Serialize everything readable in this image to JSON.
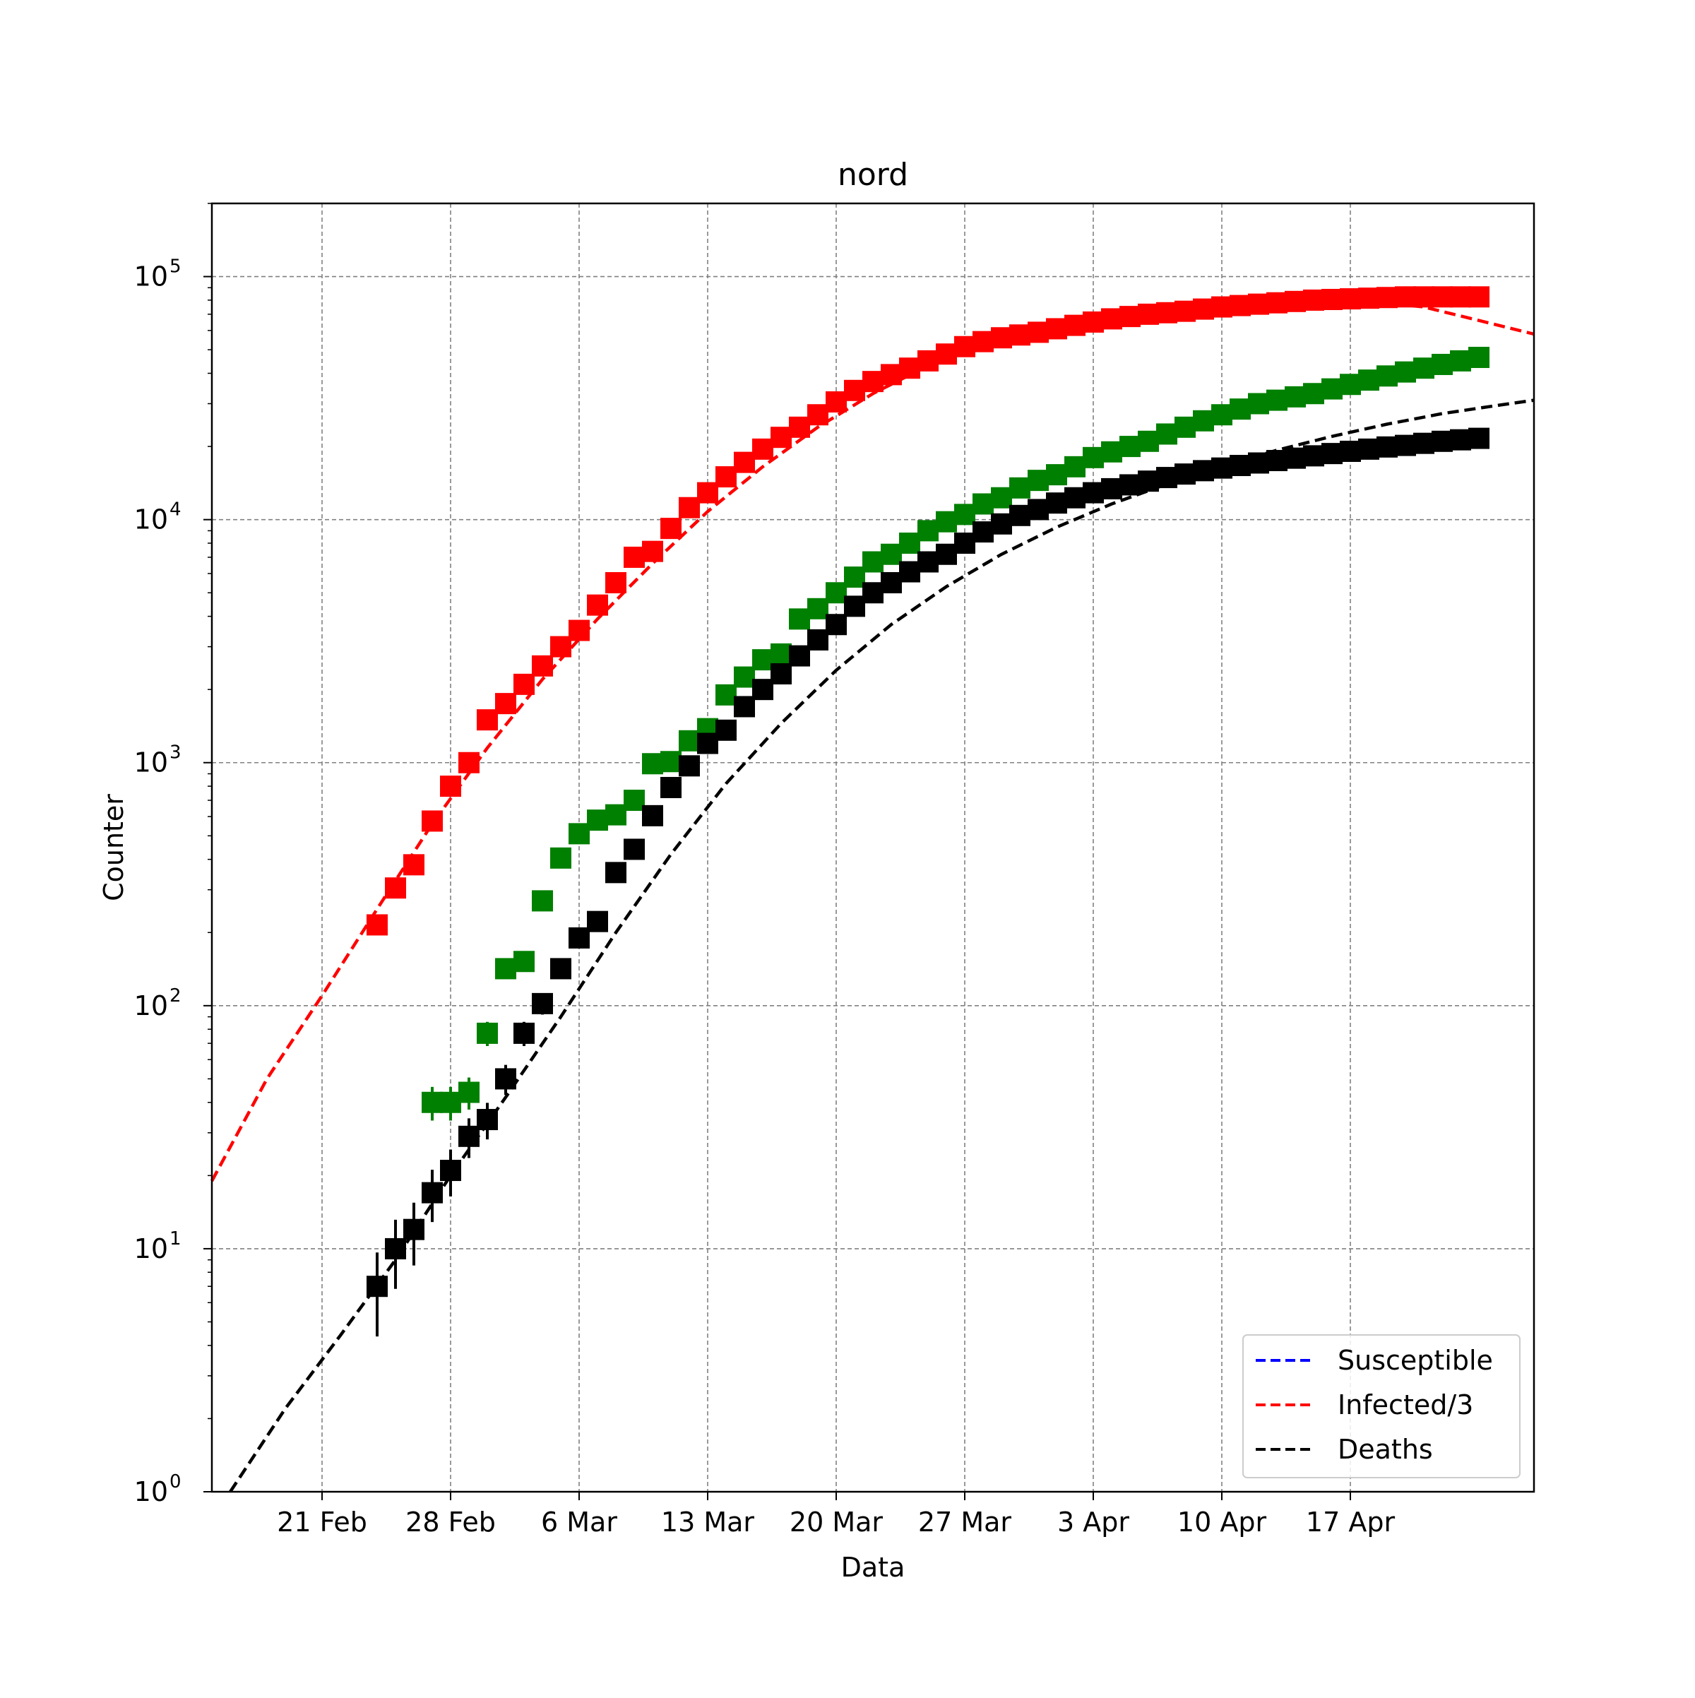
{
  "chart_data": {
    "type": "scatter",
    "title": "nord",
    "xlabel": "Data",
    "ylabel": "Counter",
    "y_scale": "log",
    "ylim": [
      1,
      200000
    ],
    "xlim": [
      "2020-02-15",
      "2020-04-27"
    ],
    "grid": true,
    "legend_position": "lower-right",
    "x_ticks": [
      {
        "date": "2020-02-21",
        "label": "21 Feb"
      },
      {
        "date": "2020-02-28",
        "label": "28 Feb"
      },
      {
        "date": "2020-03-06",
        "label": "6 Mar"
      },
      {
        "date": "2020-03-13",
        "label": "13 Mar"
      },
      {
        "date": "2020-03-20",
        "label": "20 Mar"
      },
      {
        "date": "2020-03-27",
        "label": "27 Mar"
      },
      {
        "date": "2020-04-03",
        "label": "3 Apr"
      },
      {
        "date": "2020-04-10",
        "label": "10 Apr"
      },
      {
        "date": "2020-04-17",
        "label": "17 Apr"
      }
    ],
    "y_ticks": [
      {
        "value": 1,
        "base": "10",
        "exp": "0"
      },
      {
        "value": 10,
        "base": "10",
        "exp": "1"
      },
      {
        "value": 100,
        "base": "10",
        "exp": "2"
      },
      {
        "value": 1000,
        "base": "10",
        "exp": "3"
      },
      {
        "value": 10000,
        "base": "10",
        "exp": "4"
      },
      {
        "value": 100000,
        "base": "10",
        "exp": "5"
      }
    ],
    "series": [
      {
        "name": "Susceptible",
        "kind": "model",
        "style": "dashed",
        "color": "#0000ff",
        "points": []
      },
      {
        "name": "Infected/3",
        "kind": "model",
        "style": "dashed",
        "color": "#ff0000",
        "points": [
          [
            "2020-02-15",
            19
          ],
          [
            "2020-02-18",
            50
          ],
          [
            "2020-02-21",
            110
          ],
          [
            "2020-02-24",
            250
          ],
          [
            "2020-02-27",
            560
          ],
          [
            "2020-03-01",
            1150
          ],
          [
            "2020-03-04",
            2200
          ],
          [
            "2020-03-07",
            3900
          ],
          [
            "2020-03-10",
            6600
          ],
          [
            "2020-03-13",
            10800
          ],
          [
            "2020-03-16",
            16500
          ],
          [
            "2020-03-19",
            24000
          ],
          [
            "2020-03-22",
            33000
          ],
          [
            "2020-03-25",
            43000
          ],
          [
            "2020-03-28",
            52000
          ],
          [
            "2020-03-31",
            60000
          ],
          [
            "2020-04-03",
            66000
          ],
          [
            "2020-04-06",
            71000
          ],
          [
            "2020-04-09",
            75000
          ],
          [
            "2020-04-12",
            78000
          ],
          [
            "2020-04-15",
            79500
          ],
          [
            "2020-04-18",
            79000
          ],
          [
            "2020-04-21",
            75000
          ],
          [
            "2020-04-24",
            66000
          ],
          [
            "2020-04-27",
            58000
          ]
        ]
      },
      {
        "name": "Deaths",
        "kind": "model",
        "style": "dashed",
        "color": "#000000",
        "points": [
          [
            "2020-02-16",
            1
          ],
          [
            "2020-02-19",
            2.2
          ],
          [
            "2020-02-22",
            4.4
          ],
          [
            "2020-02-25",
            9
          ],
          [
            "2020-02-28",
            20
          ],
          [
            "2020-03-02",
            42
          ],
          [
            "2020-03-05",
            90
          ],
          [
            "2020-03-08",
            200
          ],
          [
            "2020-03-11",
            420
          ],
          [
            "2020-03-14",
            820
          ],
          [
            "2020-03-17",
            1450
          ],
          [
            "2020-03-20",
            2400
          ],
          [
            "2020-03-23",
            3700
          ],
          [
            "2020-03-26",
            5300
          ],
          [
            "2020-03-29",
            7200
          ],
          [
            "2020-04-01",
            9300
          ],
          [
            "2020-04-04",
            11600
          ],
          [
            "2020-04-07",
            14000
          ],
          [
            "2020-04-10",
            16600
          ],
          [
            "2020-04-13",
            19300
          ],
          [
            "2020-04-16",
            22000
          ],
          [
            "2020-04-19",
            24700
          ],
          [
            "2020-04-22",
            27300
          ],
          [
            "2020-04-25",
            29500
          ],
          [
            "2020-04-27",
            31000
          ]
        ]
      },
      {
        "name": "",
        "kind": "observed",
        "color": "#ff0000",
        "points": [
          [
            "2020-02-24",
            215
          ],
          [
            "2020-02-25",
            305
          ],
          [
            "2020-02-26",
            380
          ],
          [
            "2020-02-27",
            575
          ],
          [
            "2020-02-28",
            800
          ],
          [
            "2020-02-29",
            1000
          ],
          [
            "2020-03-01",
            1500
          ],
          [
            "2020-03-02",
            1750
          ],
          [
            "2020-03-03",
            2100
          ],
          [
            "2020-03-04",
            2500
          ],
          [
            "2020-03-05",
            3000
          ],
          [
            "2020-03-06",
            3500
          ],
          [
            "2020-03-07",
            4450
          ],
          [
            "2020-03-08",
            5500
          ],
          [
            "2020-03-09",
            7000
          ],
          [
            "2020-03-10",
            7400
          ],
          [
            "2020-03-11",
            9200
          ],
          [
            "2020-03-12",
            11200
          ],
          [
            "2020-03-13",
            12900
          ],
          [
            "2020-03-14",
            15000
          ],
          [
            "2020-03-15",
            17200
          ],
          [
            "2020-03-16",
            19500
          ],
          [
            "2020-03-17",
            21800
          ],
          [
            "2020-03-18",
            24000
          ],
          [
            "2020-03-19",
            27000
          ],
          [
            "2020-03-20",
            30500
          ],
          [
            "2020-03-21",
            34000
          ],
          [
            "2020-03-22",
            37000
          ],
          [
            "2020-03-23",
            39500
          ],
          [
            "2020-03-24",
            42000
          ],
          [
            "2020-03-25",
            45000
          ],
          [
            "2020-03-26",
            48000
          ],
          [
            "2020-03-27",
            51500
          ],
          [
            "2020-03-28",
            54000
          ],
          [
            "2020-03-29",
            56000
          ],
          [
            "2020-03-30",
            57500
          ],
          [
            "2020-03-31",
            59000
          ],
          [
            "2020-04-01",
            61000
          ],
          [
            "2020-04-02",
            63000
          ],
          [
            "2020-04-03",
            65000
          ],
          [
            "2020-04-04",
            67000
          ],
          [
            "2020-04-05",
            68500
          ],
          [
            "2020-04-06",
            70000
          ],
          [
            "2020-04-07",
            71000
          ],
          [
            "2020-04-08",
            72000
          ],
          [
            "2020-04-09",
            73500
          ],
          [
            "2020-04-10",
            75000
          ],
          [
            "2020-04-11",
            76000
          ],
          [
            "2020-04-12",
            77000
          ],
          [
            "2020-04-13",
            78000
          ],
          [
            "2020-04-14",
            79000
          ],
          [
            "2020-04-15",
            80000
          ],
          [
            "2020-04-16",
            80500
          ],
          [
            "2020-04-17",
            81000
          ],
          [
            "2020-04-18",
            81500
          ],
          [
            "2020-04-19",
            82000
          ],
          [
            "2020-04-20",
            82500
          ],
          [
            "2020-04-21",
            82500
          ],
          [
            "2020-04-22",
            82500
          ],
          [
            "2020-04-23",
            82500
          ],
          [
            "2020-04-24",
            82500
          ]
        ]
      },
      {
        "name": "",
        "kind": "observed",
        "color": "#008000",
        "points": [
          [
            "2020-02-27",
            40
          ],
          [
            "2020-02-28",
            40
          ],
          [
            "2020-02-29",
            44
          ],
          [
            "2020-03-01",
            77
          ],
          [
            "2020-03-02",
            142
          ],
          [
            "2020-03-03",
            152
          ],
          [
            "2020-03-04",
            270
          ],
          [
            "2020-03-05",
            405
          ],
          [
            "2020-03-06",
            510
          ],
          [
            "2020-03-07",
            580
          ],
          [
            "2020-03-08",
            610
          ],
          [
            "2020-03-09",
            700
          ],
          [
            "2020-03-10",
            990
          ],
          [
            "2020-03-11",
            1010
          ],
          [
            "2020-03-12",
            1230
          ],
          [
            "2020-03-13",
            1380
          ],
          [
            "2020-03-14",
            1900
          ],
          [
            "2020-03-15",
            2250
          ],
          [
            "2020-03-16",
            2650
          ],
          [
            "2020-03-17",
            2800
          ],
          [
            "2020-03-18",
            3900
          ],
          [
            "2020-03-19",
            4300
          ],
          [
            "2020-03-20",
            5000
          ],
          [
            "2020-03-21",
            5800
          ],
          [
            "2020-03-22",
            6700
          ],
          [
            "2020-03-23",
            7200
          ],
          [
            "2020-03-24",
            8000
          ],
          [
            "2020-03-25",
            9000
          ],
          [
            "2020-03-26",
            9800
          ],
          [
            "2020-03-27",
            10500
          ],
          [
            "2020-03-28",
            11600
          ],
          [
            "2020-03-29",
            12300
          ],
          [
            "2020-03-30",
            13500
          ],
          [
            "2020-03-31",
            14500
          ],
          [
            "2020-04-01",
            15300
          ],
          [
            "2020-04-02",
            16500
          ],
          [
            "2020-04-03",
            18000
          ],
          [
            "2020-04-04",
            19000
          ],
          [
            "2020-04-05",
            20000
          ],
          [
            "2020-04-06",
            21000
          ],
          [
            "2020-04-07",
            22500
          ],
          [
            "2020-04-08",
            24000
          ],
          [
            "2020-04-09",
            25500
          ],
          [
            "2020-04-10",
            27000
          ],
          [
            "2020-04-11",
            28500
          ],
          [
            "2020-04-12",
            30000
          ],
          [
            "2020-04-13",
            31000
          ],
          [
            "2020-04-14",
            32000
          ],
          [
            "2020-04-15",
            33000
          ],
          [
            "2020-04-16",
            34500
          ],
          [
            "2020-04-17",
            36000
          ],
          [
            "2020-04-18",
            37500
          ],
          [
            "2020-04-19",
            39000
          ],
          [
            "2020-04-20",
            40500
          ],
          [
            "2020-04-21",
            42000
          ],
          [
            "2020-04-22",
            43500
          ],
          [
            "2020-04-23",
            45000
          ],
          [
            "2020-04-24",
            46500
          ]
        ]
      },
      {
        "name": "",
        "kind": "observed",
        "color": "#000000",
        "points": [
          [
            "2020-02-24",
            7
          ],
          [
            "2020-02-25",
            10
          ],
          [
            "2020-02-26",
            12
          ],
          [
            "2020-02-27",
            17
          ],
          [
            "2020-02-28",
            21
          ],
          [
            "2020-02-29",
            29
          ],
          [
            "2020-03-01",
            34
          ],
          [
            "2020-03-02",
            50
          ],
          [
            "2020-03-03",
            77
          ],
          [
            "2020-03-04",
            102
          ],
          [
            "2020-03-05",
            142
          ],
          [
            "2020-03-06",
            190
          ],
          [
            "2020-03-07",
            222
          ],
          [
            "2020-03-08",
            353
          ],
          [
            "2020-03-09",
            440
          ],
          [
            "2020-03-10",
            605
          ],
          [
            "2020-03-11",
            790
          ],
          [
            "2020-03-12",
            970
          ],
          [
            "2020-03-13",
            1200
          ],
          [
            "2020-03-14",
            1360
          ],
          [
            "2020-03-15",
            1700
          ],
          [
            "2020-03-16",
            2000
          ],
          [
            "2020-03-17",
            2320
          ],
          [
            "2020-03-18",
            2750
          ],
          [
            "2020-03-19",
            3200
          ],
          [
            "2020-03-20",
            3700
          ],
          [
            "2020-03-21",
            4400
          ],
          [
            "2020-03-22",
            5000
          ],
          [
            "2020-03-23",
            5500
          ],
          [
            "2020-03-24",
            6100
          ],
          [
            "2020-03-25",
            6700
          ],
          [
            "2020-03-26",
            7200
          ],
          [
            "2020-03-27",
            8000
          ],
          [
            "2020-03-28",
            8900
          ],
          [
            "2020-03-29",
            9600
          ],
          [
            "2020-03-30",
            10400
          ],
          [
            "2020-03-31",
            11000
          ],
          [
            "2020-04-01",
            11700
          ],
          [
            "2020-04-02",
            12300
          ],
          [
            "2020-04-03",
            12900
          ],
          [
            "2020-04-04",
            13400
          ],
          [
            "2020-04-05",
            13900
          ],
          [
            "2020-04-06",
            14400
          ],
          [
            "2020-04-07",
            14900
          ],
          [
            "2020-04-08",
            15400
          ],
          [
            "2020-04-09",
            15900
          ],
          [
            "2020-04-10",
            16300
          ],
          [
            "2020-04-11",
            16700
          ],
          [
            "2020-04-12",
            17100
          ],
          [
            "2020-04-13",
            17500
          ],
          [
            "2020-04-14",
            17900
          ],
          [
            "2020-04-15",
            18300
          ],
          [
            "2020-04-16",
            18700
          ],
          [
            "2020-04-17",
            19100
          ],
          [
            "2020-04-18",
            19500
          ],
          [
            "2020-04-19",
            19900
          ],
          [
            "2020-04-20",
            20200
          ],
          [
            "2020-04-21",
            20600
          ],
          [
            "2020-04-22",
            21000
          ],
          [
            "2020-04-23",
            21300
          ],
          [
            "2020-04-24",
            21600
          ]
        ]
      }
    ]
  }
}
